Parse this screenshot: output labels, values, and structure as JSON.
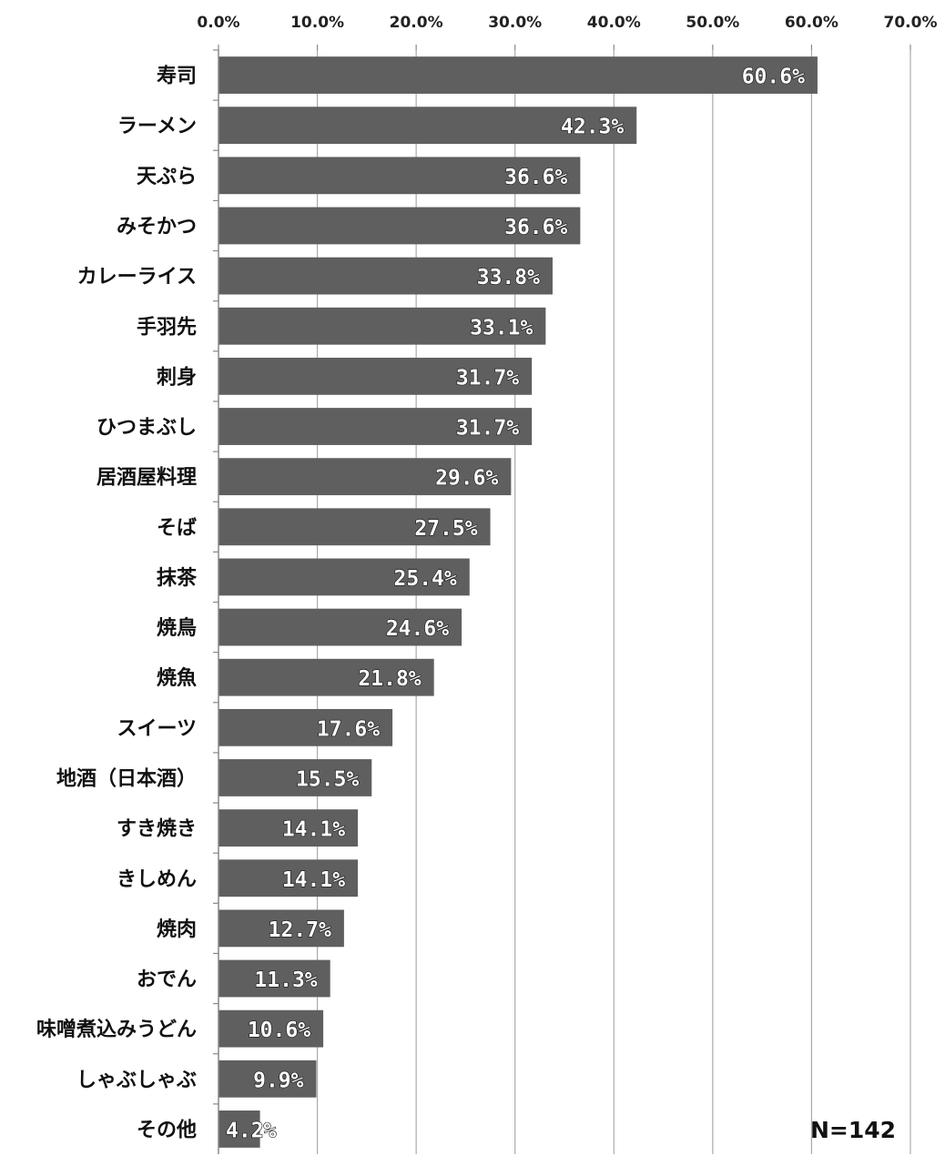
{
  "chart_data": {
    "type": "bar",
    "orientation": "horizontal",
    "categories": [
      "寿司",
      "ラーメン",
      "天ぷら",
      "みそかつ",
      "カレーライス",
      "手羽先",
      "刺身",
      "ひつまぶし",
      "居酒屋料理",
      "そば",
      "抹茶",
      "焼鳥",
      "焼魚",
      "スイーツ",
      "地酒（日本酒）",
      "すき焼き",
      "きしめん",
      "焼肉",
      "おでん",
      "味噌煮込みうどん",
      "しゃぶしゃぶ",
      "その他"
    ],
    "values": [
      60.6,
      42.3,
      36.6,
      36.6,
      33.8,
      33.1,
      31.7,
      31.7,
      29.6,
      27.5,
      25.4,
      24.6,
      21.8,
      17.6,
      15.5,
      14.1,
      14.1,
      12.7,
      11.3,
      10.6,
      9.9,
      4.2
    ],
    "data_labels": [
      "60.6%",
      "42.3%",
      "36.6%",
      "36.6%",
      "33.8%",
      "33.1%",
      "31.7%",
      "31.7%",
      "29.6%",
      "27.5%",
      "25.4%",
      "24.6%",
      "21.8%",
      "17.6%",
      "15.5%",
      "14.1%",
      "14.1%",
      "12.7%",
      "11.3%",
      "10.6%",
      "9.9%",
      "4.2%"
    ],
    "x_ticks": [
      0,
      10,
      20,
      30,
      40,
      50,
      60,
      70
    ],
    "x_tick_labels": [
      "0.0%",
      "10.0%",
      "20.0%",
      "30.0%",
      "40.0%",
      "50.0%",
      "60.0%",
      "70.0%"
    ],
    "xlim": [
      0,
      70
    ],
    "axis_position": "top",
    "grid": true,
    "bar_color": "#5f5f5f",
    "title": "",
    "xlabel": "",
    "ylabel": "",
    "note": "N=142"
  }
}
